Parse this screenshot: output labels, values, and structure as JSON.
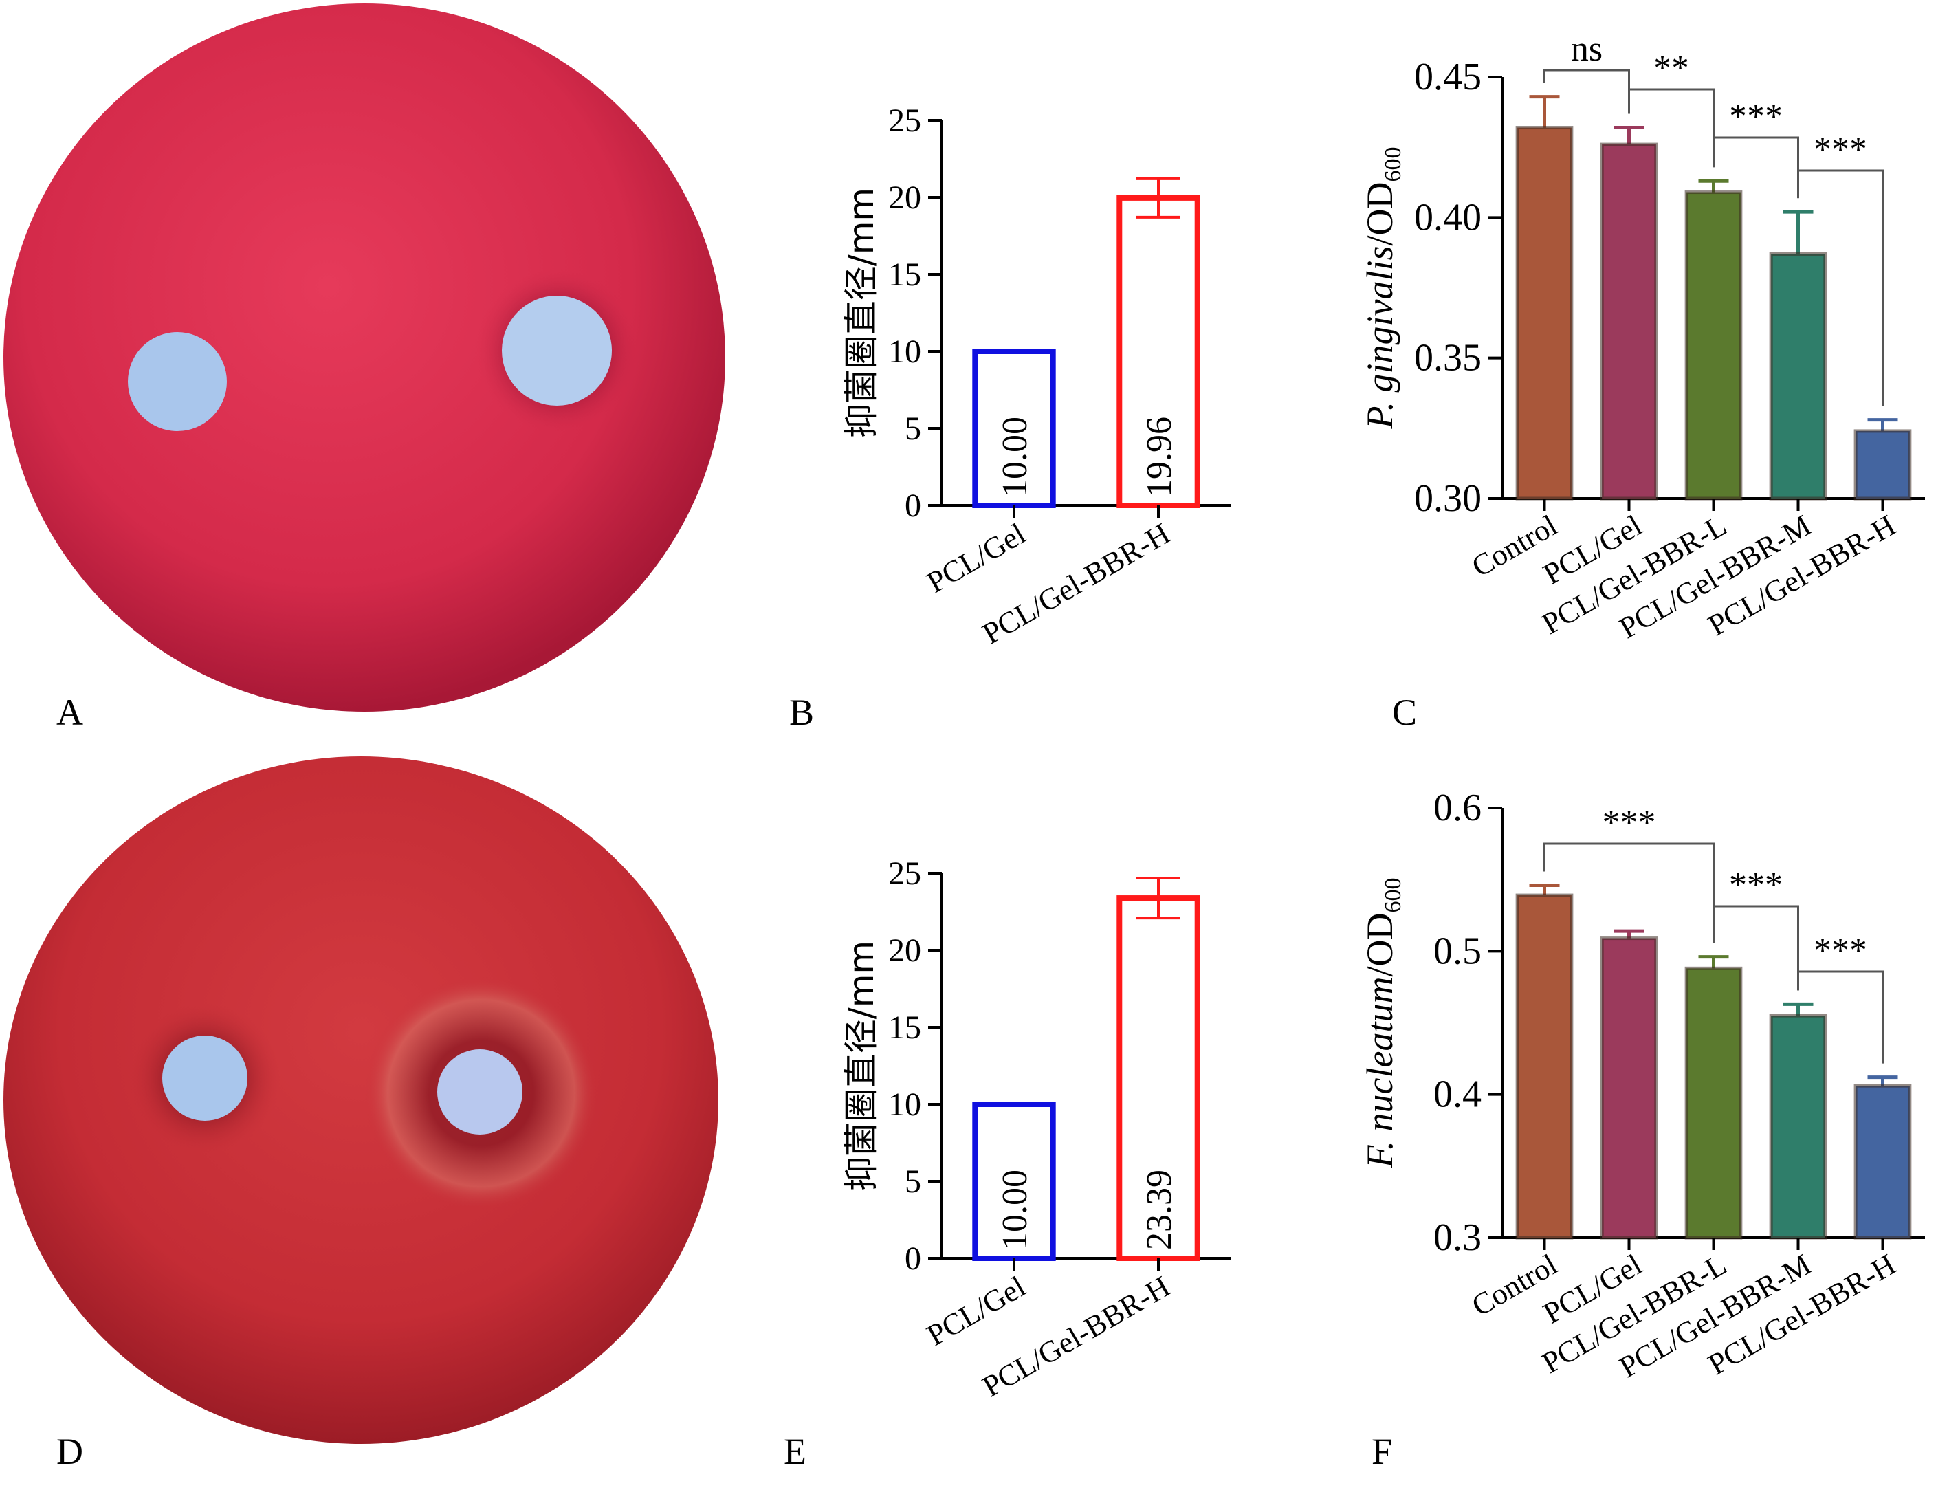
{
  "panels": {
    "A": {
      "label": "A",
      "kind": "agar-plate-photo"
    },
    "B": {
      "label": "B"
    },
    "C": {
      "label": "C"
    },
    "D": {
      "label": "D",
      "kind": "agar-plate-photo"
    },
    "E": {
      "label": "E"
    },
    "F": {
      "label": "F"
    }
  },
  "colors": {
    "plate_A": "#d42a4a",
    "plate_D": "#c92c35",
    "disc": "#a9c6ec",
    "pcl_gel_small": "#1010e0",
    "pcl_gel_bbr_h_small": "#ff1a1a",
    "control": "#a9573a",
    "pcl_gel": "#9b3a5c",
    "bbr_l": "#5b7a2e",
    "bbr_m": "#2f7e6a",
    "bbr_h": "#4465a0"
  },
  "chart_data": [
    {
      "id": "B",
      "type": "bar",
      "ylabel": "抑菌圈直径/mm",
      "categories": [
        "PCL/Gel",
        "PCL/Gel-BBR-H"
      ],
      "values": [
        10.0,
        19.96
      ],
      "errors": [
        0,
        1.25
      ],
      "value_labels": [
        "10.00",
        "19.96"
      ],
      "ylim": [
        0,
        25
      ],
      "yticks": [
        "0",
        "5",
        "10",
        "15",
        "20",
        "25"
      ],
      "bar_style": "outline",
      "colors": [
        "#1010e0",
        "#ff1a1a"
      ]
    },
    {
      "id": "C",
      "type": "bar",
      "ylabel_italic": "P. gingivalis",
      "ylabel_rest": "/OD",
      "ylabel_sub": "600",
      "categories": [
        "Control",
        "PCL/Gel",
        "PCL/Gel-BBR-L",
        "PCL/Gel-BBR-M",
        "PCL/Gel-BBR-H"
      ],
      "values": [
        0.432,
        0.426,
        0.409,
        0.387,
        0.324
      ],
      "errors": [
        0.011,
        0.006,
        0.004,
        0.015,
        0.004
      ],
      "ylim": [
        0.3,
        0.45
      ],
      "yticks": [
        "0.30",
        "0.35",
        "0.40",
        "0.45"
      ],
      "significance": [
        {
          "from": 0,
          "to": 1,
          "label": "ns"
        },
        {
          "from": 1,
          "to": 2,
          "label": "**"
        },
        {
          "from": 2,
          "to": 3,
          "label": "***"
        },
        {
          "from": 3,
          "to": 4,
          "label": "***"
        }
      ],
      "colors": [
        "#a9573a",
        "#9b3a5c",
        "#5b7a2e",
        "#2f7e6a",
        "#4465a0"
      ]
    },
    {
      "id": "E",
      "type": "bar",
      "ylabel": "抑菌圈直径/mm",
      "categories": [
        "PCL/Gel",
        "PCL/Gel-BBR-H"
      ],
      "values": [
        10.0,
        23.39
      ],
      "errors": [
        0,
        1.3
      ],
      "value_labels": [
        "10.00",
        "23.39"
      ],
      "ylim": [
        0,
        25
      ],
      "yticks": [
        "0",
        "5",
        "10",
        "15",
        "20",
        "25"
      ],
      "bar_style": "outline",
      "colors": [
        "#1010e0",
        "#ff1a1a"
      ]
    },
    {
      "id": "F",
      "type": "bar",
      "ylabel_italic": "F. nucleatum",
      "ylabel_rest": "/OD",
      "ylabel_sub": "600",
      "categories": [
        "Control",
        "PCL/Gel",
        "PCL/Gel-BBR-L",
        "PCL/Gel-BBR-M",
        "PCL/Gel-BBR-H"
      ],
      "values": [
        0.539,
        0.509,
        0.488,
        0.455,
        0.406
      ],
      "errors": [
        0.007,
        0.005,
        0.008,
        0.008,
        0.006
      ],
      "ylim": [
        0.3,
        0.6
      ],
      "yticks": [
        "0.3",
        "0.4",
        "0.5",
        "0.6"
      ],
      "significance": [
        {
          "from": 0,
          "to": 2,
          "label": "***"
        },
        {
          "from": 2,
          "to": 3,
          "label": "***"
        },
        {
          "from": 3,
          "to": 4,
          "label": "***"
        }
      ],
      "colors": [
        "#a9573a",
        "#9b3a5c",
        "#5b7a2e",
        "#2f7e6a",
        "#4465a0"
      ]
    }
  ]
}
